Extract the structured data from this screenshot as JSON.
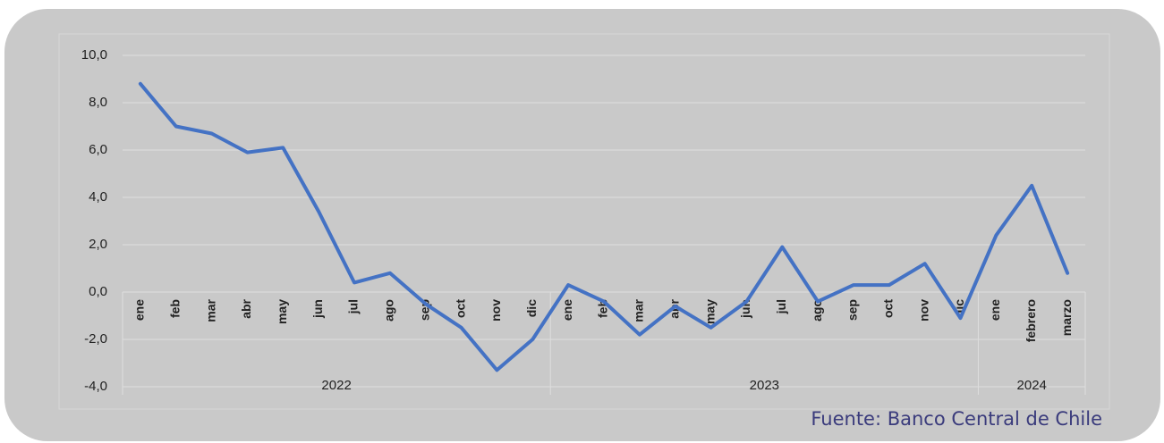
{
  "chart_data": {
    "type": "line",
    "groups": [
      {
        "name": "2022",
        "categories": [
          "ene",
          "feb",
          "mar",
          "abr",
          "may",
          "jun",
          "jul",
          "ago",
          "sep",
          "oct",
          "nov",
          "dic"
        ]
      },
      {
        "name": "2023",
        "categories": [
          "ene",
          "feb",
          "mar",
          "abr",
          "may",
          "jun",
          "jul",
          "ago",
          "sep",
          "oct",
          "nov",
          "dic"
        ]
      },
      {
        "name": "2024",
        "categories": [
          "ene",
          "febrero",
          "marzo"
        ]
      }
    ],
    "values": [
      8.8,
      7.0,
      6.7,
      5.9,
      6.1,
      3.4,
      0.4,
      0.8,
      -0.5,
      -1.5,
      -3.3,
      -2.0,
      0.3,
      -0.4,
      -1.8,
      -0.6,
      -1.5,
      -0.4,
      1.9,
      -0.4,
      0.3,
      0.3,
      1.2,
      -1.1,
      2.4,
      4.5,
      0.8
    ],
    "color": "#4472c4",
    "ylim": [
      -4,
      10
    ],
    "yticks": [
      {
        "value": -4,
        "label": "-4,0"
      },
      {
        "value": -2,
        "label": "-2,0"
      },
      {
        "value": 0,
        "label": "0,0"
      },
      {
        "value": 2,
        "label": "2,0"
      },
      {
        "value": 4,
        "label": "4,0"
      },
      {
        "value": 6,
        "label": "6,0"
      },
      {
        "value": 8,
        "label": "8,0"
      },
      {
        "value": 10,
        "label": "10,0"
      }
    ],
    "grid": true,
    "source": "Fuente: Banco Central de Chile"
  }
}
